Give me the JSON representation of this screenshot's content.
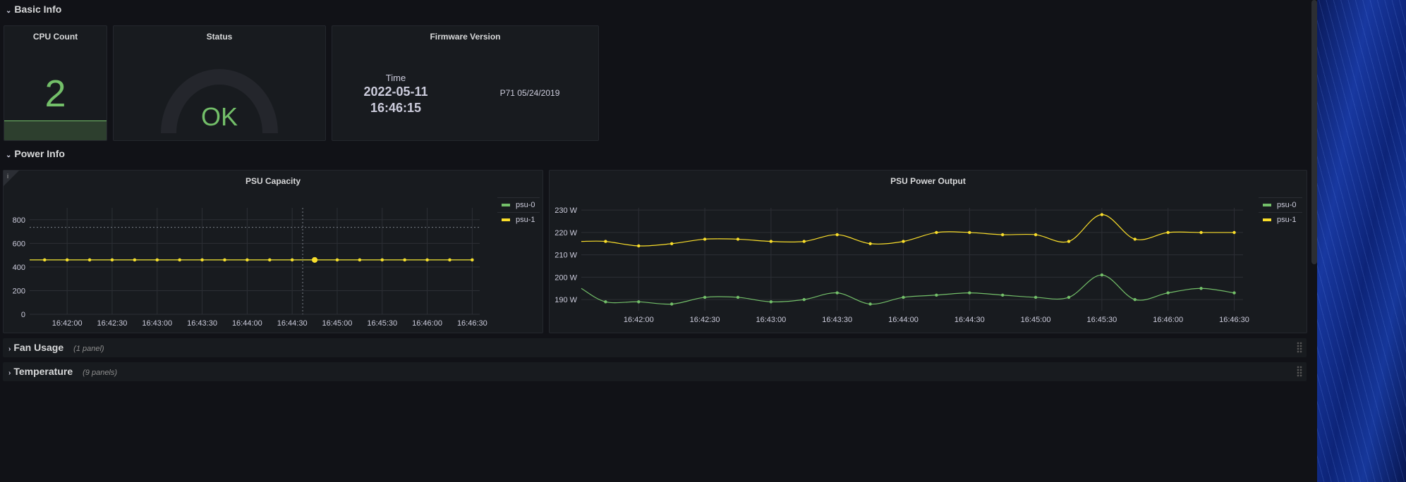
{
  "sections": {
    "basic": "Basic Info",
    "power": "Power Info"
  },
  "cpu": {
    "title": "CPU Count",
    "value": "2"
  },
  "status": {
    "title": "Status",
    "value": "OK"
  },
  "firmware": {
    "title": "Firmware Version",
    "time_label": "Time",
    "date": "2022-05-11",
    "time": "16:46:15",
    "version": "P71 05/24/2019"
  },
  "rows": [
    {
      "title": "Fan Usage",
      "count": "(1 panel)"
    },
    {
      "title": "Temperature",
      "count": "(9 panels)"
    }
  ],
  "colors": {
    "green": "#73bf69",
    "yellow": "#fade2a"
  },
  "chart_data": [
    {
      "type": "line",
      "title": "PSU Capacity",
      "x": [
        "16:41:45",
        "16:42:00",
        "16:42:15",
        "16:42:30",
        "16:42:45",
        "16:43:00",
        "16:43:15",
        "16:43:30",
        "16:43:45",
        "16:44:00",
        "16:44:15",
        "16:44:30",
        "16:44:45",
        "16:45:00",
        "16:45:15",
        "16:45:30",
        "16:45:45",
        "16:46:00",
        "16:46:15",
        "16:46:30"
      ],
      "xticks": [
        "16:42:00",
        "16:42:30",
        "16:43:00",
        "16:43:30",
        "16:44:00",
        "16:44:30",
        "16:45:00",
        "16:45:30",
        "16:46:00",
        "16:46:30"
      ],
      "yticks": [
        0,
        200,
        400,
        600,
        800
      ],
      "ylim": [
        0,
        900
      ],
      "threshold": 735,
      "crosshair": "16:44:37",
      "highlight": "16:44:45",
      "legend": "right",
      "series": [
        {
          "name": "psu-0",
          "color": "#73bf69",
          "values": [
            460,
            460,
            460,
            460,
            460,
            460,
            460,
            460,
            460,
            460,
            460,
            460,
            460,
            460,
            460,
            460,
            460,
            460,
            460,
            460
          ]
        },
        {
          "name": "psu-1",
          "color": "#fade2a",
          "values": [
            460,
            460,
            460,
            460,
            460,
            460,
            460,
            460,
            460,
            460,
            460,
            460,
            460,
            460,
            460,
            460,
            460,
            460,
            460,
            460
          ]
        }
      ]
    },
    {
      "type": "line",
      "title": "PSU Power Output",
      "x": [
        "16:41:45",
        "16:42:00",
        "16:42:15",
        "16:42:30",
        "16:42:45",
        "16:43:00",
        "16:43:15",
        "16:43:30",
        "16:43:45",
        "16:44:00",
        "16:44:15",
        "16:44:30",
        "16:44:45",
        "16:45:00",
        "16:45:15",
        "16:45:30",
        "16:45:45",
        "16:46:00",
        "16:46:15",
        "16:46:30"
      ],
      "xticks": [
        "16:42:00",
        "16:42:30",
        "16:43:00",
        "16:43:30",
        "16:44:00",
        "16:44:30",
        "16:45:00",
        "16:45:30",
        "16:46:00",
        "16:46:30"
      ],
      "yticks": [
        "190 W",
        "200 W",
        "210 W",
        "220 W",
        "230 W"
      ],
      "ylim": [
        185,
        231
      ],
      "legend": "right",
      "series": [
        {
          "name": "psu-0",
          "color": "#73bf69",
          "start": 195,
          "values": [
            189,
            189,
            188,
            191,
            191,
            189,
            190,
            193,
            188,
            191,
            192,
            193,
            192,
            191,
            191,
            201,
            190,
            193,
            195,
            193
          ]
        },
        {
          "name": "psu-1",
          "color": "#fade2a",
          "start": 216,
          "values": [
            216,
            214,
            215,
            217,
            217,
            216,
            216,
            219,
            215,
            216,
            220,
            220,
            219,
            219,
            216,
            228,
            217,
            220,
            220,
            220
          ]
        }
      ]
    }
  ]
}
